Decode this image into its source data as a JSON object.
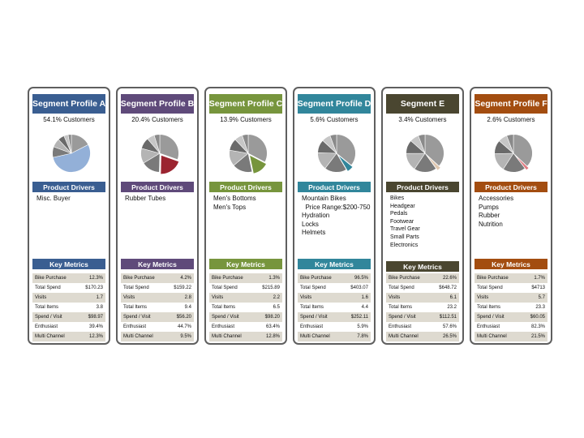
{
  "labels": {
    "product_drivers": "Product Drivers",
    "key_metrics": "Key Metrics"
  },
  "segments": [
    {
      "title": "Segment Profile  A",
      "customers": "54.1% Customers",
      "color": "#3a5e91",
      "drivers": [
        "Misc. Buyer"
      ],
      "metrics": [
        {
          "label": "Bike Purchase",
          "value": "12.3%"
        },
        {
          "label": "Total Spend",
          "value": "$170.23"
        },
        {
          "label": "Visits",
          "value": "1.7"
        },
        {
          "label": "Total Items",
          "value": "3.8"
        },
        {
          "label": "Spend / Visit",
          "value": "$98.97"
        },
        {
          "label": "Enthusiast",
          "value": "39.4%"
        },
        {
          "label": "Multi Channel",
          "value": "12.3%"
        }
      ],
      "pie": {
        "highlight_color": "#93b0d8",
        "highlight": 0.54
      }
    },
    {
      "title": "Segment Profile B",
      "customers": "20.4% Customers",
      "color": "#5f4a7a",
      "drivers": [
        "Rubber Tubes"
      ],
      "metrics": [
        {
          "label": "Bike Purchase",
          "value": "4.2%"
        },
        {
          "label": "Total Spend",
          "value": "$159.22"
        },
        {
          "label": "Visits",
          "value": "2.8"
        },
        {
          "label": "Total Items",
          "value": "9.4"
        },
        {
          "label": "Spend / Visit",
          "value": "$56.20"
        },
        {
          "label": "Enthusiast",
          "value": "44.7%"
        },
        {
          "label": "Multi Channel",
          "value": "9.5%"
        }
      ],
      "pie": {
        "highlight_color": "#9b2430",
        "highlight": 0.2
      }
    },
    {
      "title": "Segment  Profile C",
      "customers": "13.9% Customers",
      "color": "#77953d",
      "drivers": [
        "Men's Bottoms",
        "Men's Tops"
      ],
      "metrics": [
        {
          "label": "Bike Purchase",
          "value": "1.3%"
        },
        {
          "label": "Total Spend",
          "value": "$215.89"
        },
        {
          "label": "Visits",
          "value": "2.2"
        },
        {
          "label": "Total Items",
          "value": "6.5"
        },
        {
          "label": "Spend / Visit",
          "value": "$98.20"
        },
        {
          "label": "Enthusiast",
          "value": "63.4%"
        },
        {
          "label": "Multi Channel",
          "value": "12.8%"
        }
      ],
      "pie": {
        "highlight_color": "#77953d",
        "highlight": 0.14
      }
    },
    {
      "title": "Segment Profile D",
      "customers": "5.6% Customers",
      "color": "#31869b",
      "drivers": [
        "Mountain Bikes",
        "  Price Range:$200-750",
        "Hydration",
        "Locks",
        "Helmets"
      ],
      "metrics": [
        {
          "label": "Bike Purchase",
          "value": "96.5%"
        },
        {
          "label": "Total Spend",
          "value": "$403.07"
        },
        {
          "label": "Visits",
          "value": "1.6"
        },
        {
          "label": "Total Items",
          "value": "4.4"
        },
        {
          "label": "Spend / Visit",
          "value": "$252.11"
        },
        {
          "label": "Enthusiast",
          "value": "5.9%"
        },
        {
          "label": "Multi Channel",
          "value": "7.8%"
        }
      ],
      "pie": {
        "highlight_color": "#31869b",
        "highlight": 0.056
      }
    },
    {
      "title": "Segment  E",
      "customers": "3.4% Customers",
      "color": "#4a4630",
      "drivers": [
        "Bikes",
        "Headgear",
        "Pedals",
        "Footwear",
        "Travel Gear",
        "Small Parts",
        "Electronics"
      ],
      "metrics": [
        {
          "label": "Bike Purchase",
          "value": "22.6%"
        },
        {
          "label": "Total Spend",
          "value": "$648.72"
        },
        {
          "label": "Visits",
          "value": "6.1"
        },
        {
          "label": "Total Items",
          "value": "23.2"
        },
        {
          "label": "Spend / Visit",
          "value": "$112.51"
        },
        {
          "label": "Enthusiast",
          "value": "57.6%"
        },
        {
          "label": "Multi Channel",
          "value": "26.5%"
        }
      ],
      "pie": {
        "highlight_color": "#e0c8b0",
        "highlight": 0.034
      }
    },
    {
      "title": "Segment Profile  F",
      "customers": "2.6% Customers",
      "color": "#a34d10",
      "drivers": [
        "Accessories",
        "Pumps",
        "Rubber",
        "Nutrition"
      ],
      "metrics": [
        {
          "label": "Bike Purchase",
          "value": "1.7%"
        },
        {
          "label": "Total Spend",
          "value": "$4713"
        },
        {
          "label": "Visits",
          "value": "5.7"
        },
        {
          "label": "Total Items",
          "value": "23.3"
        },
        {
          "label": "Spend / Visit",
          "value": "$60.05"
        },
        {
          "label": "Enthusiast",
          "value": "82.3%"
        },
        {
          "label": "Multi Channel",
          "value": "21.5%"
        }
      ],
      "pie": {
        "highlight_color": "#e07a80",
        "highlight": 0.026
      }
    }
  ]
}
